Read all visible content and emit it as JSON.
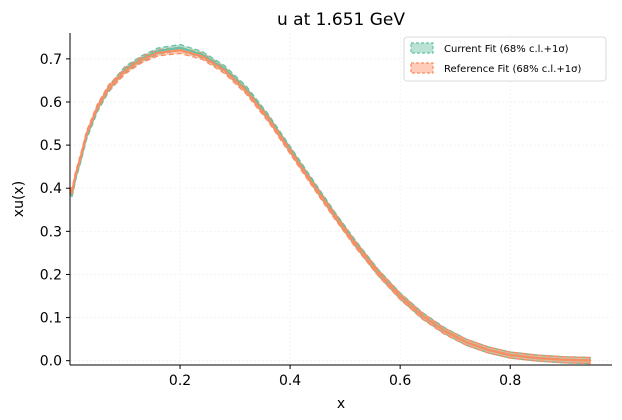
{
  "chart_data": {
    "type": "line",
    "title": "u at 1.651 GeV",
    "xlabel": "x",
    "ylabel": "xu(x)",
    "xlim": [
      0.0,
      0.985
    ],
    "ylim": [
      -0.01,
      0.76
    ],
    "xticks": [
      0.2,
      0.4,
      0.6,
      0.8
    ],
    "xtick_labels": [
      "0.2",
      "0.4",
      "0.6",
      "0.8"
    ],
    "yticks": [
      0.0,
      0.1,
      0.2,
      0.3,
      0.4,
      0.5,
      0.6,
      0.7
    ],
    "ytick_labels": [
      "0.0",
      "0.1",
      "0.2",
      "0.3",
      "0.4",
      "0.5",
      "0.6",
      "0.7"
    ],
    "grid": true,
    "legend_position": "top-right",
    "series": [
      {
        "name": "Current Fit (68% c.l.+1σ)",
        "color": "#66c2a5",
        "band": true,
        "x": [
          0.0008,
          0.003,
          0.006,
          0.01,
          0.02,
          0.03,
          0.05,
          0.07,
          0.1,
          0.13,
          0.16,
          0.2,
          0.24,
          0.28,
          0.32,
          0.36,
          0.4,
          0.44,
          0.48,
          0.52,
          0.56,
          0.6,
          0.64,
          0.68,
          0.72,
          0.76,
          0.8,
          0.85,
          0.9,
          0.945
        ],
        "y": [
          0.39,
          0.385,
          0.4,
          0.425,
          0.47,
          0.52,
          0.585,
          0.63,
          0.675,
          0.7,
          0.718,
          0.726,
          0.71,
          0.678,
          0.63,
          0.565,
          0.49,
          0.415,
          0.34,
          0.27,
          0.205,
          0.15,
          0.105,
          0.07,
          0.043,
          0.025,
          0.013,
          0.006,
          0.002,
          0.0005
        ],
        "band_halfwidth": 0.007
      },
      {
        "name": "Reference Fit (68% c.l.+1σ)",
        "color": "#fc8d62",
        "band": true,
        "x": [
          0.0008,
          0.003,
          0.006,
          0.01,
          0.02,
          0.03,
          0.05,
          0.07,
          0.1,
          0.13,
          0.16,
          0.2,
          0.24,
          0.28,
          0.32,
          0.36,
          0.4,
          0.44,
          0.48,
          0.52,
          0.56,
          0.6,
          0.64,
          0.68,
          0.72,
          0.76,
          0.8,
          0.85,
          0.9,
          0.945
        ],
        "y": [
          0.395,
          0.39,
          0.405,
          0.43,
          0.475,
          0.525,
          0.588,
          0.632,
          0.672,
          0.698,
          0.714,
          0.72,
          0.706,
          0.674,
          0.626,
          0.562,
          0.487,
          0.412,
          0.338,
          0.268,
          0.204,
          0.149,
          0.104,
          0.069,
          0.043,
          0.025,
          0.013,
          0.006,
          0.002,
          0.0005
        ],
        "band_halfwidth": 0.007
      }
    ]
  }
}
